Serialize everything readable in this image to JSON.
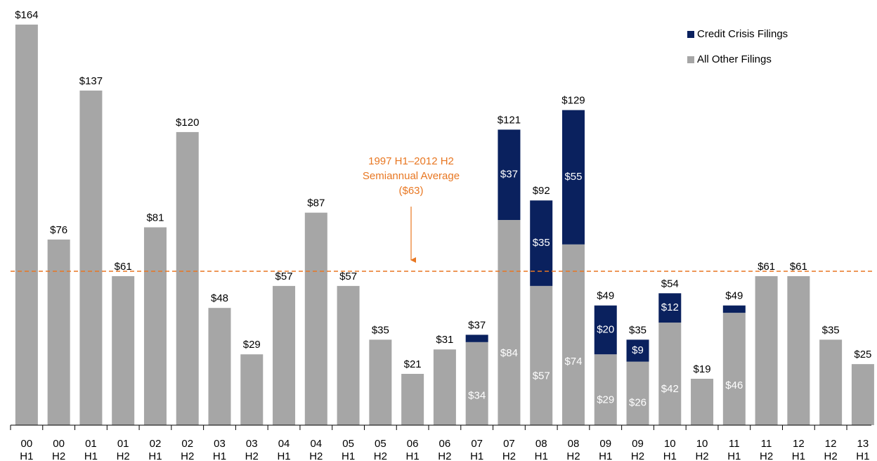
{
  "chart_data": {
    "type": "bar",
    "stacked": true,
    "categories": [
      [
        "00",
        "H1"
      ],
      [
        "00",
        "H2"
      ],
      [
        "01",
        "H1"
      ],
      [
        "01",
        "H2"
      ],
      [
        "02",
        "H1"
      ],
      [
        "02",
        "H2"
      ],
      [
        "03",
        "H1"
      ],
      [
        "03",
        "H2"
      ],
      [
        "04",
        "H1"
      ],
      [
        "04",
        "H2"
      ],
      [
        "05",
        "H1"
      ],
      [
        "05",
        "H2"
      ],
      [
        "06",
        "H1"
      ],
      [
        "06",
        "H2"
      ],
      [
        "07",
        "H1"
      ],
      [
        "07",
        "H2"
      ],
      [
        "08",
        "H1"
      ],
      [
        "08",
        "H2"
      ],
      [
        "09",
        "H1"
      ],
      [
        "09",
        "H2"
      ],
      [
        "10",
        "H1"
      ],
      [
        "10",
        "H2"
      ],
      [
        "11",
        "H1"
      ],
      [
        "11",
        "H2"
      ],
      [
        "12",
        "H1"
      ],
      [
        "12",
        "H2"
      ],
      [
        "13",
        "H1"
      ]
    ],
    "series": [
      {
        "name": "All Other Filings",
        "color": "#a6a6a6",
        "values": [
          164,
          76,
          137,
          61,
          81,
          120,
          48,
          29,
          57,
          87,
          57,
          35,
          21,
          31,
          34,
          84,
          57,
          74,
          29,
          26,
          42,
          19,
          46,
          61,
          61,
          35,
          25
        ],
        "value_labels": [
          null,
          null,
          null,
          null,
          null,
          null,
          null,
          null,
          null,
          null,
          null,
          null,
          null,
          null,
          "$34",
          "$84",
          "$57",
          "$74",
          "$29",
          "$26",
          "$42",
          null,
          "$46",
          null,
          null,
          null,
          null
        ]
      },
      {
        "name": "Credit Crisis Filings",
        "color": "#0a215e",
        "values": [
          null,
          null,
          null,
          null,
          null,
          null,
          null,
          null,
          null,
          null,
          null,
          null,
          null,
          null,
          3,
          37,
          35,
          55,
          20,
          9,
          12,
          null,
          3,
          null,
          null,
          null,
          null
        ],
        "value_labels": [
          null,
          null,
          null,
          null,
          null,
          null,
          null,
          null,
          null,
          null,
          null,
          null,
          null,
          null,
          null,
          "$37",
          "$35",
          "$55",
          "$20",
          "$9",
          "$12",
          null,
          null,
          null,
          null,
          null,
          null
        ]
      }
    ],
    "totals": {
      "values": [
        164,
        76,
        137,
        61,
        81,
        120,
        48,
        29,
        57,
        87,
        57,
        35,
        21,
        31,
        37,
        121,
        92,
        129,
        49,
        35,
        54,
        19,
        49,
        61,
        61,
        35,
        25
      ],
      "value_labels": [
        "$164",
        "$76",
        "$137",
        "$61",
        "$81",
        "$120",
        "$48",
        "$29",
        "$57",
        "$87",
        "$57",
        "$35",
        "$21",
        "$31",
        "$37",
        "$121",
        "$92",
        "$129",
        "$49",
        "$35",
        "$54",
        "$19",
        "$49",
        "$61",
        "$61",
        "$35",
        "$25"
      ]
    },
    "average": {
      "value": 63,
      "color": "#e87722",
      "label": [
        "1997 H1–2012 H2",
        "Semiannual Average",
        "($63)"
      ]
    },
    "ylim": [
      0,
      164
    ],
    "legend": "upper right",
    "grid": false
  }
}
